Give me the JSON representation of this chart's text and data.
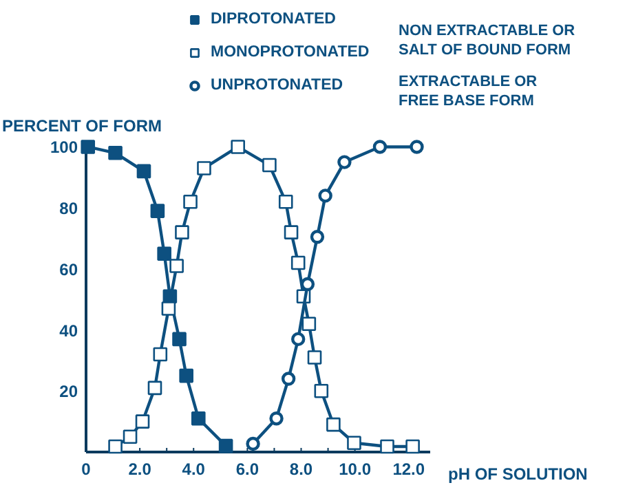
{
  "chart_data": {
    "type": "line",
    "ylabel": "PERCENT OF FORM",
    "xlabel": "pH OF SOLUTION",
    "xlim": [
      0,
      12.8
    ],
    "ylim": [
      0,
      101
    ],
    "xticks": [
      0,
      {
        "value": 1,
        "label": null
      },
      {
        "value": 2,
        "label": "2.0"
      },
      {
        "value": 3,
        "label": null
      },
      {
        "value": 4,
        "label": "4.0"
      },
      {
        "value": 5,
        "label": null
      },
      {
        "value": 6,
        "label": "6.0"
      },
      {
        "value": 7,
        "label": null
      },
      {
        "value": 8,
        "label": "8.0"
      },
      {
        "value": 9,
        "label": null
      },
      {
        "value": 10,
        "label": "10.0"
      },
      {
        "value": 11,
        "label": null
      },
      {
        "value": 12,
        "label": "12.0"
      }
    ],
    "yticks": [
      20,
      40,
      60,
      80,
      100
    ],
    "grid": false,
    "legend": "top",
    "line_style": "solid",
    "annotations": [
      "NON EXTRACTABLE OR SALT OF BOUND FORM",
      "EXTRACTABLE OR FREE BASE FORM"
    ],
    "series": [
      {
        "name": "DIPROTONATED",
        "color": "#0d5080",
        "marker": "square_filled",
        "x": [
          0.07,
          1.09,
          2.15,
          2.66,
          2.91,
          3.12,
          3.47,
          3.73,
          4.18,
          5.2
        ],
        "values": [
          100,
          98,
          92,
          79,
          65,
          51,
          37,
          25,
          11,
          2
        ]
      },
      {
        "name": "MONOPROTONATED",
        "color": "#0d5080",
        "marker": "square",
        "x": [
          1.09,
          1.64,
          2.1,
          2.56,
          2.76,
          3.07,
          3.37,
          3.57,
          3.88,
          4.39,
          5.65,
          6.82,
          7.43,
          7.63,
          7.89,
          8.09,
          8.29,
          8.5,
          8.75,
          9.2,
          9.97,
          11.2,
          12.15
        ],
        "values": [
          1.8,
          5,
          10,
          21,
          32,
          47,
          61,
          72,
          82,
          93,
          100,
          94,
          82,
          72,
          62,
          51,
          42,
          31,
          20,
          9,
          3,
          1.8,
          1.8
        ]
      },
      {
        "name": "UNPROTONATED",
        "color": "#0d5080",
        "marker": "circle",
        "x": [
          6.21,
          7.08,
          7.53,
          7.89,
          8.24,
          8.6,
          8.9,
          9.61,
          10.93,
          12.3
        ],
        "values": [
          2.7,
          11,
          24,
          37,
          55,
          70.5,
          84,
          95,
          100,
          100
        ]
      }
    ]
  }
}
